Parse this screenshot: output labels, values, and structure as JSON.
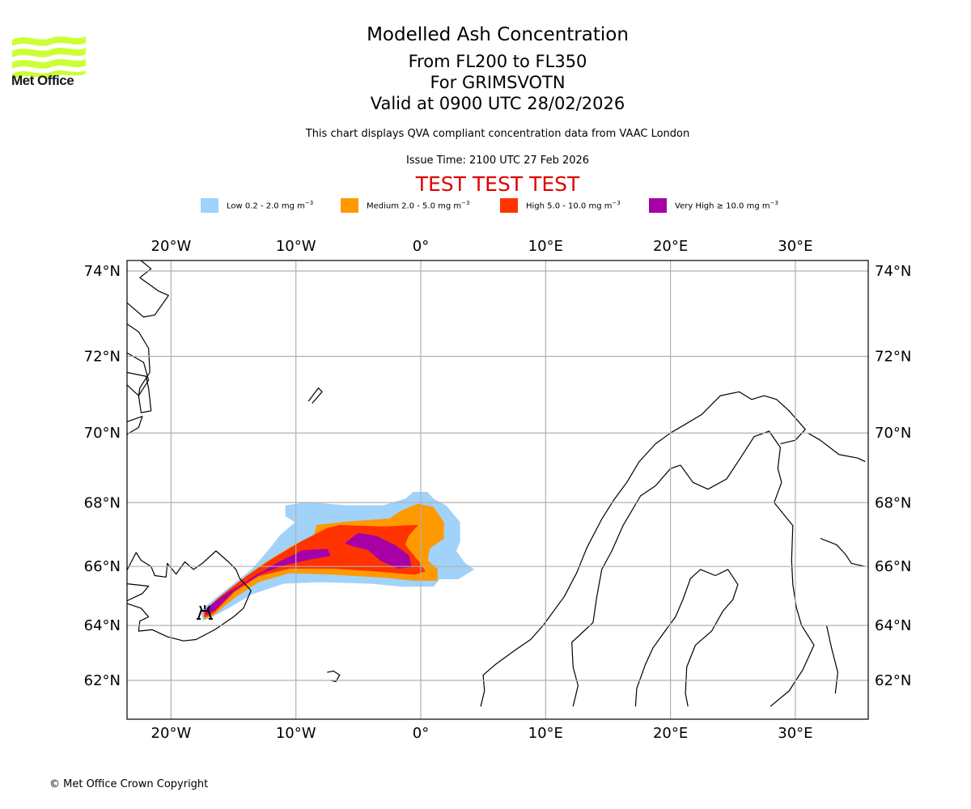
{
  "logo": {
    "text": "Met Office",
    "color": "#ccff33"
  },
  "header": {
    "title": "Modelled Ash Concentration",
    "levels": "From FL200 to FL350",
    "volcano": "For GRIMSVOTN",
    "valid": "Valid at 0900 UTC 28/02/2026",
    "description": "This chart displays QVA compliant concentration data from VAAC London",
    "issue_time": "Issue Time: 2100 UTC 27 Feb 2026",
    "test_banner": "TEST TEST TEST",
    "test_color": "#e00000"
  },
  "legend": [
    {
      "label": "Low 0.2 - 2.0 mg m",
      "exp": "−3",
      "color": "#a0d2fa"
    },
    {
      "label": "Medium 2.0 - 5.0 mg m",
      "exp": "−3",
      "color": "#ff9900"
    },
    {
      "label": "High 5.0 - 10.0 mg m",
      "exp": "−3",
      "color": "#ff3300"
    },
    {
      "label": "Very High ≥ 10.0 mg m",
      "exp": "−3",
      "color": "#a600a6"
    }
  ],
  "footer": {
    "copyright": "© Met Office Crown Copyright"
  },
  "chart_data": {
    "type": "map",
    "title": "Modelled Ash Concentration",
    "projection": "mercator",
    "extent": {
      "lon": [
        -23.6,
        35.6
      ],
      "lat": [
        61.0,
        74.3
      ]
    },
    "grid": true,
    "lon_ticks": [
      {
        "value": -20,
        "label": "20°W"
      },
      {
        "value": -10,
        "label": "10°W"
      },
      {
        "value": 0,
        "label": "0°"
      },
      {
        "value": 10,
        "label": "10°E"
      },
      {
        "value": 20,
        "label": "20°E"
      },
      {
        "value": 30,
        "label": "30°E"
      }
    ],
    "lat_ticks": [
      {
        "value": 74,
        "label": "74°N"
      },
      {
        "value": 72,
        "label": "72°N"
      },
      {
        "value": 70,
        "label": "70°N"
      },
      {
        "value": 68,
        "label": "68°N"
      },
      {
        "value": 66,
        "label": "66°N"
      },
      {
        "value": 64,
        "label": "64°N"
      },
      {
        "value": 62,
        "label": "62°N"
      }
    ],
    "volcano": {
      "name": "GRIMSVOTN",
      "lon": -17.3,
      "lat": 64.4
    },
    "ash_contours": [
      {
        "level": "Low",
        "color": "#a0d2fa",
        "polygon": [
          [
            -17.4,
            64.2
          ],
          [
            -17.6,
            64.5
          ],
          [
            -16.5,
            64.9
          ],
          [
            -15.0,
            65.4
          ],
          [
            -13.5,
            65.9
          ],
          [
            -12.2,
            66.5
          ],
          [
            -11.2,
            67.0
          ],
          [
            -10.0,
            67.4
          ],
          [
            -10.8,
            67.6
          ],
          [
            -10.8,
            67.9
          ],
          [
            -9.0,
            68.0
          ],
          [
            -6.0,
            67.9
          ],
          [
            -3.0,
            67.9
          ],
          [
            -1.2,
            68.1
          ],
          [
            -0.6,
            68.3
          ],
          [
            0.5,
            68.3
          ],
          [
            1.0,
            68.1
          ],
          [
            2.0,
            67.9
          ],
          [
            3.1,
            67.4
          ],
          [
            3.1,
            66.8
          ],
          [
            2.8,
            66.5
          ],
          [
            3.5,
            66.1
          ],
          [
            4.2,
            65.9
          ],
          [
            3.0,
            65.6
          ],
          [
            1.5,
            65.6
          ],
          [
            1.0,
            65.35
          ],
          [
            -1.5,
            65.35
          ],
          [
            -4.0,
            65.45
          ],
          [
            -8.0,
            65.5
          ],
          [
            -11.0,
            65.45
          ],
          [
            -13.5,
            65.1
          ],
          [
            -15.5,
            64.6
          ],
          [
            -16.8,
            64.3
          ]
        ]
      },
      {
        "level": "Medium",
        "color": "#ff9900",
        "polygon": [
          [
            -17.3,
            64.25
          ],
          [
            -17.4,
            64.45
          ],
          [
            -16.3,
            64.9
          ],
          [
            -14.5,
            65.5
          ],
          [
            -12.5,
            66.1
          ],
          [
            -10.5,
            66.6
          ],
          [
            -8.5,
            67.0
          ],
          [
            -8.3,
            67.3
          ],
          [
            -6.0,
            67.4
          ],
          [
            -2.5,
            67.5
          ],
          [
            -1.5,
            67.75
          ],
          [
            -0.2,
            67.95
          ],
          [
            1.0,
            67.85
          ],
          [
            1.8,
            67.4
          ],
          [
            1.8,
            66.9
          ],
          [
            0.7,
            66.6
          ],
          [
            0.5,
            66.2
          ],
          [
            1.3,
            65.9
          ],
          [
            1.3,
            65.55
          ],
          [
            -0.5,
            65.55
          ],
          [
            -3.0,
            65.65
          ],
          [
            -7.0,
            65.75
          ],
          [
            -10.5,
            65.8
          ],
          [
            -13.0,
            65.5
          ],
          [
            -15.0,
            64.95
          ],
          [
            -16.7,
            64.35
          ]
        ]
      },
      {
        "level": "High",
        "color": "#ff3300",
        "polygon": [
          [
            -17.3,
            64.3
          ],
          [
            -17.3,
            64.5
          ],
          [
            -16.0,
            65.0
          ],
          [
            -14.0,
            65.65
          ],
          [
            -12.0,
            66.2
          ],
          [
            -9.5,
            66.8
          ],
          [
            -7.5,
            67.2
          ],
          [
            -6.5,
            67.3
          ],
          [
            -3.0,
            67.25
          ],
          [
            -0.3,
            67.3
          ],
          [
            -1.0,
            67.0
          ],
          [
            -1.3,
            66.7
          ],
          [
            -0.7,
            66.4
          ],
          [
            -0.1,
            66.1
          ],
          [
            0.3,
            65.85
          ],
          [
            -0.5,
            65.75
          ],
          [
            -3.5,
            65.85
          ],
          [
            -7.0,
            65.95
          ],
          [
            -10.5,
            65.95
          ],
          [
            -13.0,
            65.7
          ],
          [
            -15.0,
            65.15
          ],
          [
            -16.6,
            64.45
          ]
        ]
      },
      {
        "level": "Very High",
        "color": "#a600a6",
        "polygon": [
          [
            -17.2,
            64.4
          ],
          [
            -17.1,
            64.6
          ],
          [
            -15.5,
            65.1
          ],
          [
            -13.5,
            65.6
          ],
          [
            -11.5,
            66.1
          ],
          [
            -9.5,
            66.5
          ],
          [
            -7.5,
            66.55
          ],
          [
            -7.3,
            66.35
          ],
          [
            -8.8,
            66.25
          ],
          [
            -11.0,
            66.05
          ],
          [
            -13.0,
            65.75
          ],
          [
            -15.0,
            65.2
          ],
          [
            -16.5,
            64.55
          ]
        ]
      },
      {
        "level": "Very High",
        "color": "#a600a6",
        "polygon": [
          [
            -6.0,
            66.75
          ],
          [
            -5.0,
            67.05
          ],
          [
            -3.5,
            66.95
          ],
          [
            -2.0,
            66.65
          ],
          [
            -1.0,
            66.35
          ],
          [
            -0.8,
            66.0
          ],
          [
            -1.8,
            65.95
          ],
          [
            -3.2,
            66.2
          ],
          [
            -4.2,
            66.55
          ],
          [
            -5.3,
            66.65
          ]
        ]
      }
    ]
  }
}
